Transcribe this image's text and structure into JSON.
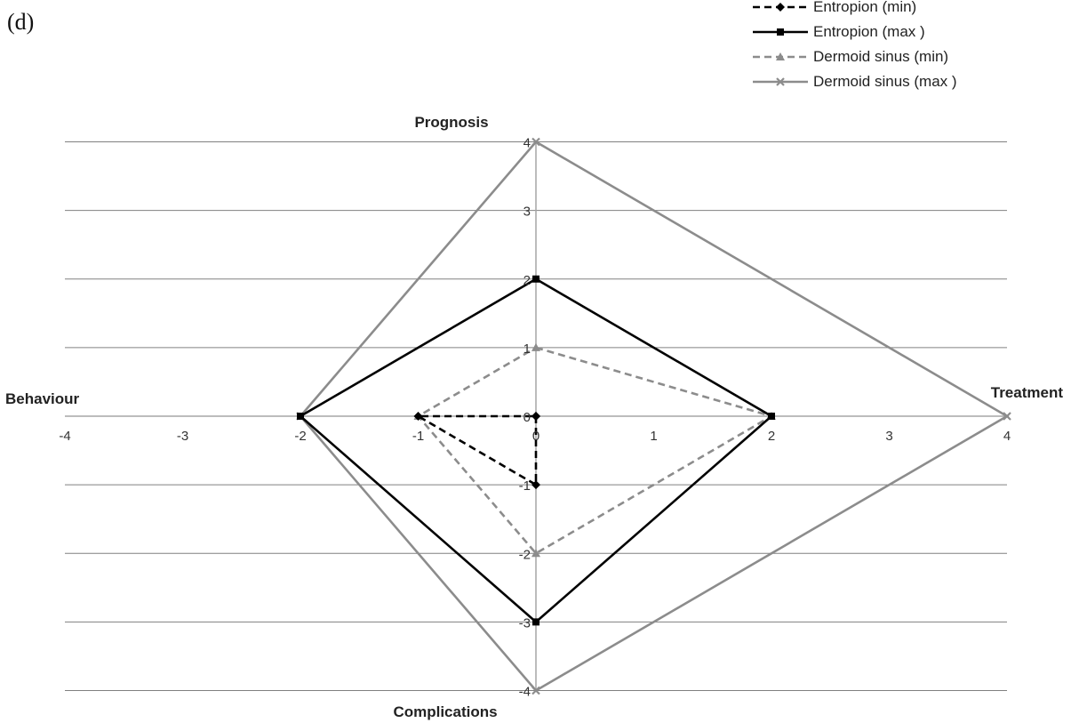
{
  "panel_label": "(d)",
  "colors": {
    "black": "#000000",
    "gray": "#8c8c8c",
    "grid": "#808080",
    "axis": "#a6a6a6"
  },
  "chart_data": {
    "type": "line",
    "xlim": [
      -4,
      4
    ],
    "ylim": [
      -4,
      4
    ],
    "x_ticks": [
      "-4",
      "-3",
      "-2",
      "-1",
      "0",
      "1",
      "2",
      "3",
      "4"
    ],
    "y_ticks": [
      "-4",
      "-3",
      "-2",
      "-1",
      "0",
      "1",
      "2",
      "3",
      "4"
    ],
    "grid": "horizontal",
    "legend_position": "top-right",
    "axis_labels": {
      "top": "Prognosis",
      "bottom": "Complications",
      "left": "Behaviour",
      "right": "Treatment"
    },
    "series": [
      {
        "name": "Entropion (min)",
        "color": "#000000",
        "dash": "dashed",
        "marker": "diamond",
        "points": [
          [
            0,
            0
          ],
          [
            0,
            0
          ],
          [
            0,
            -1
          ],
          [
            -1,
            0
          ]
        ]
      },
      {
        "name": "Entropion (max )",
        "color": "#000000",
        "dash": "solid",
        "marker": "square",
        "points": [
          [
            0,
            2
          ],
          [
            2,
            0
          ],
          [
            0,
            -3
          ],
          [
            -2,
            0
          ]
        ]
      },
      {
        "name": "Dermoid sinus (min)",
        "color": "#8c8c8c",
        "dash": "dashed",
        "marker": "triangle",
        "points": [
          [
            0,
            1
          ],
          [
            2,
            0
          ],
          [
            0,
            -2
          ],
          [
            -1,
            0
          ]
        ]
      },
      {
        "name": "Dermoid sinus (max )",
        "color": "#8c8c8c",
        "dash": "solid",
        "marker": "x",
        "points": [
          [
            0,
            4
          ],
          [
            4,
            0
          ],
          [
            0,
            -4
          ],
          [
            -2,
            0
          ]
        ]
      }
    ]
  }
}
